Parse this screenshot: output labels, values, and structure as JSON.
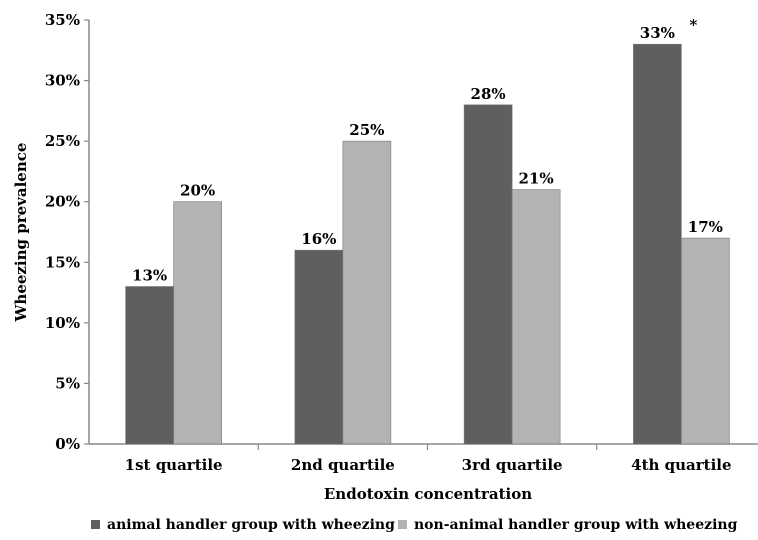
{
  "chart_data": {
    "type": "bar",
    "title": "",
    "xlabel": "Endotoxin concentration",
    "ylabel": "Wheezing prevalence",
    "categories": [
      "1st quartile",
      "2nd quartile",
      "3rd quartile",
      "4th quartile"
    ],
    "ylim": [
      0,
      35
    ],
    "yticks": [
      "0%",
      "5%",
      "10%",
      "15%",
      "20%",
      "25%",
      "30%",
      "35%"
    ],
    "grid": false,
    "legend_position": "bottom",
    "series": [
      {
        "name": "animal handler group with wheezing",
        "color": "#5f5f5f",
        "values": [
          13,
          16,
          28,
          33
        ],
        "labels": [
          "13%",
          "16%",
          "28%",
          "33%"
        ]
      },
      {
        "name": "non-animal handler group with wheezing",
        "color": "#b3b3b3",
        "values": [
          20,
          25,
          21,
          17
        ],
        "labels": [
          "20%",
          "25%",
          "21%",
          "17%"
        ]
      }
    ],
    "annotations": [
      {
        "text": "*",
        "category": "4th quartile",
        "series": 0
      }
    ]
  }
}
